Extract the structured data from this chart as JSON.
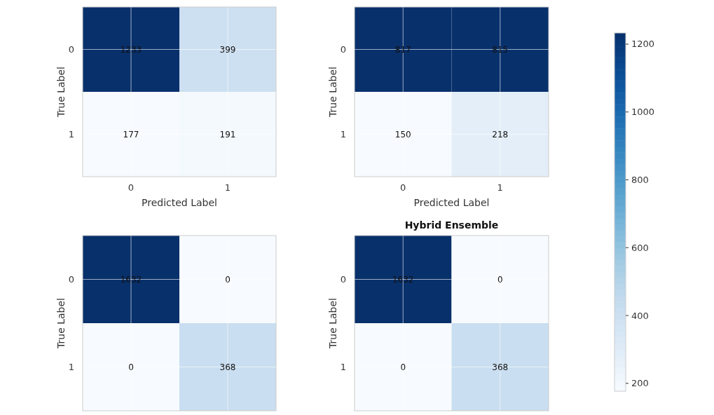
{
  "chart_data": [
    {
      "type": "heatmap",
      "categories": [
        "0",
        "1"
      ],
      "y_categories": [
        "0",
        "1"
      ],
      "cells": [
        [
          1233,
          399
        ],
        [
          177,
          191
        ]
      ],
      "data_labels": true,
      "xlabel": "Predicted Label",
      "ylabel": "True Label",
      "grid": true,
      "clim": [
        177,
        1233
      ],
      "cticks": [
        200,
        400,
        600,
        800,
        1000,
        1200
      ]
    },
    {
      "type": "heatmap",
      "categories": [
        "0",
        "1"
      ],
      "y_categories": [
        "0",
        "1"
      ],
      "cells": [
        [
          817,
          815
        ],
        [
          150,
          218
        ]
      ],
      "data_labels": true,
      "xlabel": "Predicted Label",
      "ylabel": "True Label",
      "grid": true
    },
    {
      "type": "heatmap",
      "categories": [
        "0",
        "1"
      ],
      "y_categories": [
        "0",
        "1"
      ],
      "cells": [
        [
          1632,
          0
        ],
        [
          0,
          368
        ]
      ],
      "data_labels": true,
      "ylabel": "True Label",
      "grid": true,
      "tick_labels": "y"
    },
    {
      "type": "heatmap",
      "title": "Hybrid Ensemble",
      "categories": [
        "0",
        "1"
      ],
      "y_categories": [
        "0",
        "1"
      ],
      "cells": [
        [
          1632,
          0
        ],
        [
          0,
          368
        ]
      ],
      "data_labels": true,
      "ylabel": "True Label",
      "grid": true,
      "tick_labels": "y"
    }
  ]
}
